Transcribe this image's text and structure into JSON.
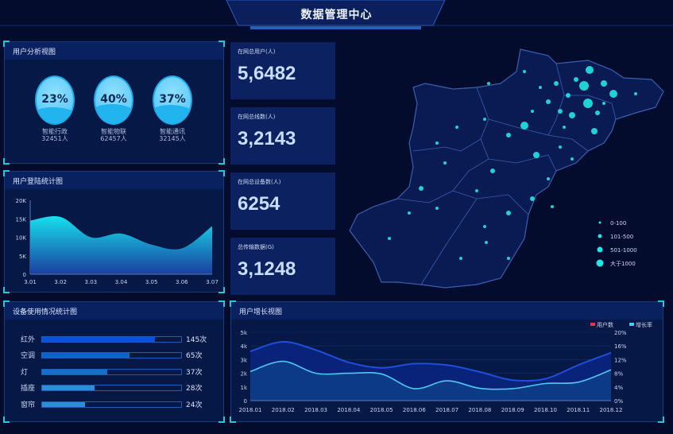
{
  "header": {
    "title": "数据管理中心"
  },
  "user_analysis": {
    "title": "用户分析视图",
    "items": [
      {
        "percent": "23%",
        "fill": 0.23,
        "name": "智能行政",
        "count": "32451人"
      },
      {
        "percent": "40%",
        "fill": 0.4,
        "name": "智能物联",
        "count": "62457人"
      },
      {
        "percent": "37%",
        "fill": 0.37,
        "name": "智能通讯",
        "count": "32145人"
      }
    ]
  },
  "stats": [
    {
      "label": "在网总用户(人)",
      "value": "5,6482"
    },
    {
      "label": "在网总线数(人)",
      "value": "3,2143"
    },
    {
      "label": "在网总设备数(人)",
      "value": "6254"
    },
    {
      "label": "总传输数据(G)",
      "value": "3,1248"
    }
  ],
  "map": {
    "legend": [
      {
        "label": "0-100"
      },
      {
        "label": "101-500"
      },
      {
        "label": "501-1000"
      },
      {
        "label": "大于1000"
      }
    ],
    "marker_color": "#22e6e6"
  },
  "device_usage": {
    "title": "设备使用情况统计图",
    "items": [
      {
        "name": "红外",
        "value": "145次",
        "fill": 0.81,
        "color": "#0b4fe0"
      },
      {
        "name": "空调",
        "value": "65次",
        "fill": 0.63,
        "color": "#0e62d0"
      },
      {
        "name": "灯",
        "value": "37次",
        "fill": 0.47,
        "color": "#1570cc"
      },
      {
        "name": "插座",
        "value": "28次",
        "fill": 0.375,
        "color": "#2a8ed8"
      },
      {
        "name": "窗帘",
        "value": "24次",
        "fill": 0.31,
        "color": "#2a8ed8"
      }
    ]
  },
  "chart_data": [
    {
      "type": "area",
      "title": "用户登陆统计图",
      "categories": [
        "3.01",
        "3.02",
        "3.03",
        "3.04",
        "3.05",
        "3.06",
        "3.07"
      ],
      "values": [
        14500,
        15500,
        10000,
        11000,
        8000,
        7000,
        13000
      ],
      "yticks": [
        "0",
        "5K",
        "10K",
        "15K",
        "20K"
      ],
      "ylim": [
        0,
        20000
      ],
      "color": "#18e0ec"
    },
    {
      "type": "area",
      "title": "用户增长视图",
      "categories": [
        "2018.01",
        "2018.02",
        "2018.03",
        "2018.04",
        "2018.05",
        "2018.06",
        "2018.07",
        "2018.08",
        "2018.09",
        "2018.10",
        "2018.11",
        "2018.12"
      ],
      "series": [
        {
          "name": "用户数",
          "axis": "left",
          "values": [
            3600,
            4300,
            3700,
            2800,
            2400,
            2700,
            2600,
            2100,
            1500,
            1600,
            2600,
            3500
          ],
          "color": "#e8344e",
          "line": "#1f4fd8"
        },
        {
          "name": "增长率",
          "axis": "right",
          "values": [
            8.5,
            11.5,
            8.0,
            8.0,
            7.8,
            3.5,
            5.8,
            3.6,
            3.5,
            5.0,
            5.4,
            9.0
          ],
          "color": "#3ed0f0",
          "line": "#4ec8f0"
        }
      ],
      "yticks_left": [
        "0",
        "1k",
        "2k",
        "3k",
        "4k",
        "5k"
      ],
      "ylim_left": [
        0,
        5000
      ],
      "yticks_right": [
        "0%",
        "4%",
        "8%",
        "12%",
        "16%",
        "20%"
      ],
      "ylim_right": [
        0,
        20
      ]
    }
  ]
}
